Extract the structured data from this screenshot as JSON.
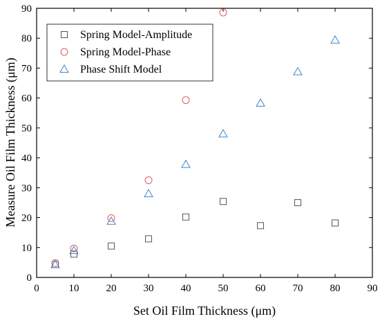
{
  "chart_data": {
    "type": "scatter",
    "title": "",
    "xlabel": "Set Oil Film Thickness (μm)",
    "ylabel": "Measure Oil Film Thickness (μm)",
    "xlim": [
      0,
      90
    ],
    "ylim": [
      0,
      90
    ],
    "xticks": [
      0,
      10,
      20,
      30,
      40,
      50,
      60,
      70,
      80,
      90
    ],
    "yticks": [
      0,
      10,
      20,
      30,
      40,
      50,
      60,
      70,
      80,
      90
    ],
    "grid": false,
    "legend_position": "top-left",
    "series": [
      {
        "name": "Spring Model-Amplitude",
        "marker": "square",
        "color": "#555555",
        "points": [
          {
            "x": 5,
            "y": 4.3
          },
          {
            "x": 10,
            "y": 7.8
          },
          {
            "x": 20,
            "y": 10.5
          },
          {
            "x": 30,
            "y": 12.9
          },
          {
            "x": 40,
            "y": 20.2
          },
          {
            "x": 50,
            "y": 25.4
          },
          {
            "x": 60,
            "y": 17.3
          },
          {
            "x": 70,
            "y": 25.0
          },
          {
            "x": 80,
            "y": 18.2
          }
        ]
      },
      {
        "name": "Spring Model-Phase",
        "marker": "circle",
        "color": "#e05a5a",
        "points": [
          {
            "x": 5,
            "y": 4.8
          },
          {
            "x": 10,
            "y": 9.7
          },
          {
            "x": 20,
            "y": 19.8
          },
          {
            "x": 30,
            "y": 32.5
          },
          {
            "x": 40,
            "y": 59.3
          },
          {
            "x": 50,
            "y": 88.6
          }
        ]
      },
      {
        "name": "Phase Shift Model",
        "marker": "triangle",
        "color": "#3f86c9",
        "points": [
          {
            "x": 5,
            "y": 4.3
          },
          {
            "x": 10,
            "y": 9.0
          },
          {
            "x": 20,
            "y": 18.8
          },
          {
            "x": 30,
            "y": 28.0
          },
          {
            "x": 40,
            "y": 37.8
          },
          {
            "x": 50,
            "y": 48.0
          },
          {
            "x": 60,
            "y": 58.3
          },
          {
            "x": 70,
            "y": 68.8
          },
          {
            "x": 80,
            "y": 79.4
          }
        ]
      }
    ]
  }
}
